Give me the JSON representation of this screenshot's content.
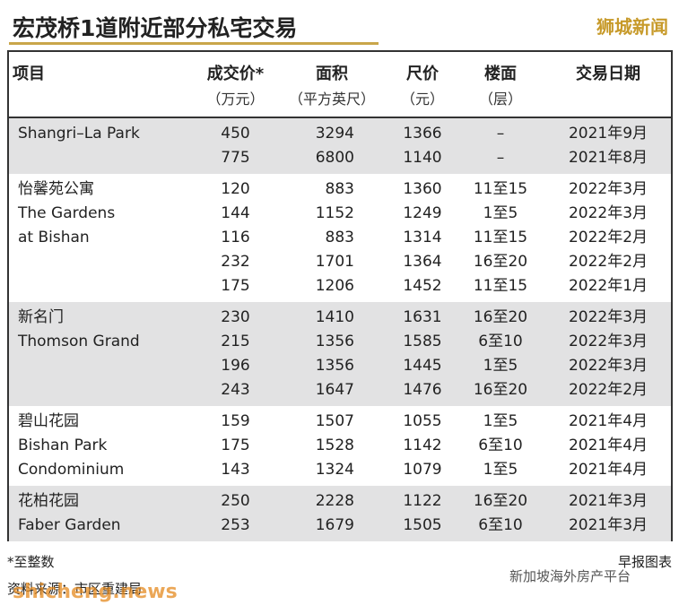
{
  "header": {
    "title": "宏茂桥1道附近部分私宅交易",
    "watermark": "狮城新闻"
  },
  "table": {
    "columns": [
      {
        "label": "项目"
      },
      {
        "label": "成交价*",
        "unit": "（万元）"
      },
      {
        "label": "面积",
        "unit": "（平方英尺）"
      },
      {
        "label": "尺价",
        "unit": "（元）"
      },
      {
        "label": "楼面",
        "unit": "（层）"
      },
      {
        "label": "交易日期"
      }
    ],
    "groups": [
      {
        "name_lines": [
          "Shangri–La Park"
        ],
        "rows": [
          [
            450,
            3294,
            1366,
            "–",
            "2021年9月"
          ],
          [
            775,
            6800,
            1140,
            "–",
            "2021年8月"
          ]
        ]
      },
      {
        "name_lines": [
          "怡馨苑公寓",
          "The Gardens",
          "at Bishan"
        ],
        "rows": [
          [
            120,
            883,
            1360,
            "11至15",
            "2022年3月"
          ],
          [
            144,
            1152,
            1249,
            "1至5",
            "2022年3月"
          ],
          [
            116,
            883,
            1314,
            "11至15",
            "2022年2月"
          ],
          [
            232,
            1701,
            1364,
            "16至20",
            "2022年2月"
          ],
          [
            175,
            1206,
            1452,
            "11至15",
            "2022年1月"
          ]
        ]
      },
      {
        "name_lines": [
          "新名门",
          "Thomson Grand"
        ],
        "rows": [
          [
            230,
            1410,
            1631,
            "16至20",
            "2022年3月"
          ],
          [
            215,
            1356,
            1585,
            "6至10",
            "2022年3月"
          ],
          [
            196,
            1356,
            1445,
            "1至5",
            "2022年3月"
          ],
          [
            243,
            1647,
            1476,
            "16至20",
            "2022年2月"
          ]
        ]
      },
      {
        "name_lines": [
          "碧山花园",
          "Bishan Park",
          "Condominium"
        ],
        "rows": [
          [
            159,
            1507,
            1055,
            "1至5",
            "2021年4月"
          ],
          [
            175,
            1528,
            1142,
            "6至10",
            "2021年4月"
          ],
          [
            143,
            1324,
            1079,
            "1至5",
            "2021年4月"
          ]
        ]
      },
      {
        "name_lines": [
          "花柏花园",
          "Faber Garden"
        ],
        "rows": [
          [
            250,
            2228,
            1122,
            "16至20",
            "2021年3月"
          ],
          [
            253,
            1679,
            1505,
            "6至10",
            "2021年3月"
          ]
        ]
      }
    ]
  },
  "footer": {
    "note": "*至整数",
    "credit": "早报图表",
    "source": "资料来源：市区重建局",
    "platform": "新加坡海外房产平台",
    "site_watermark": "shicheng.news"
  }
}
